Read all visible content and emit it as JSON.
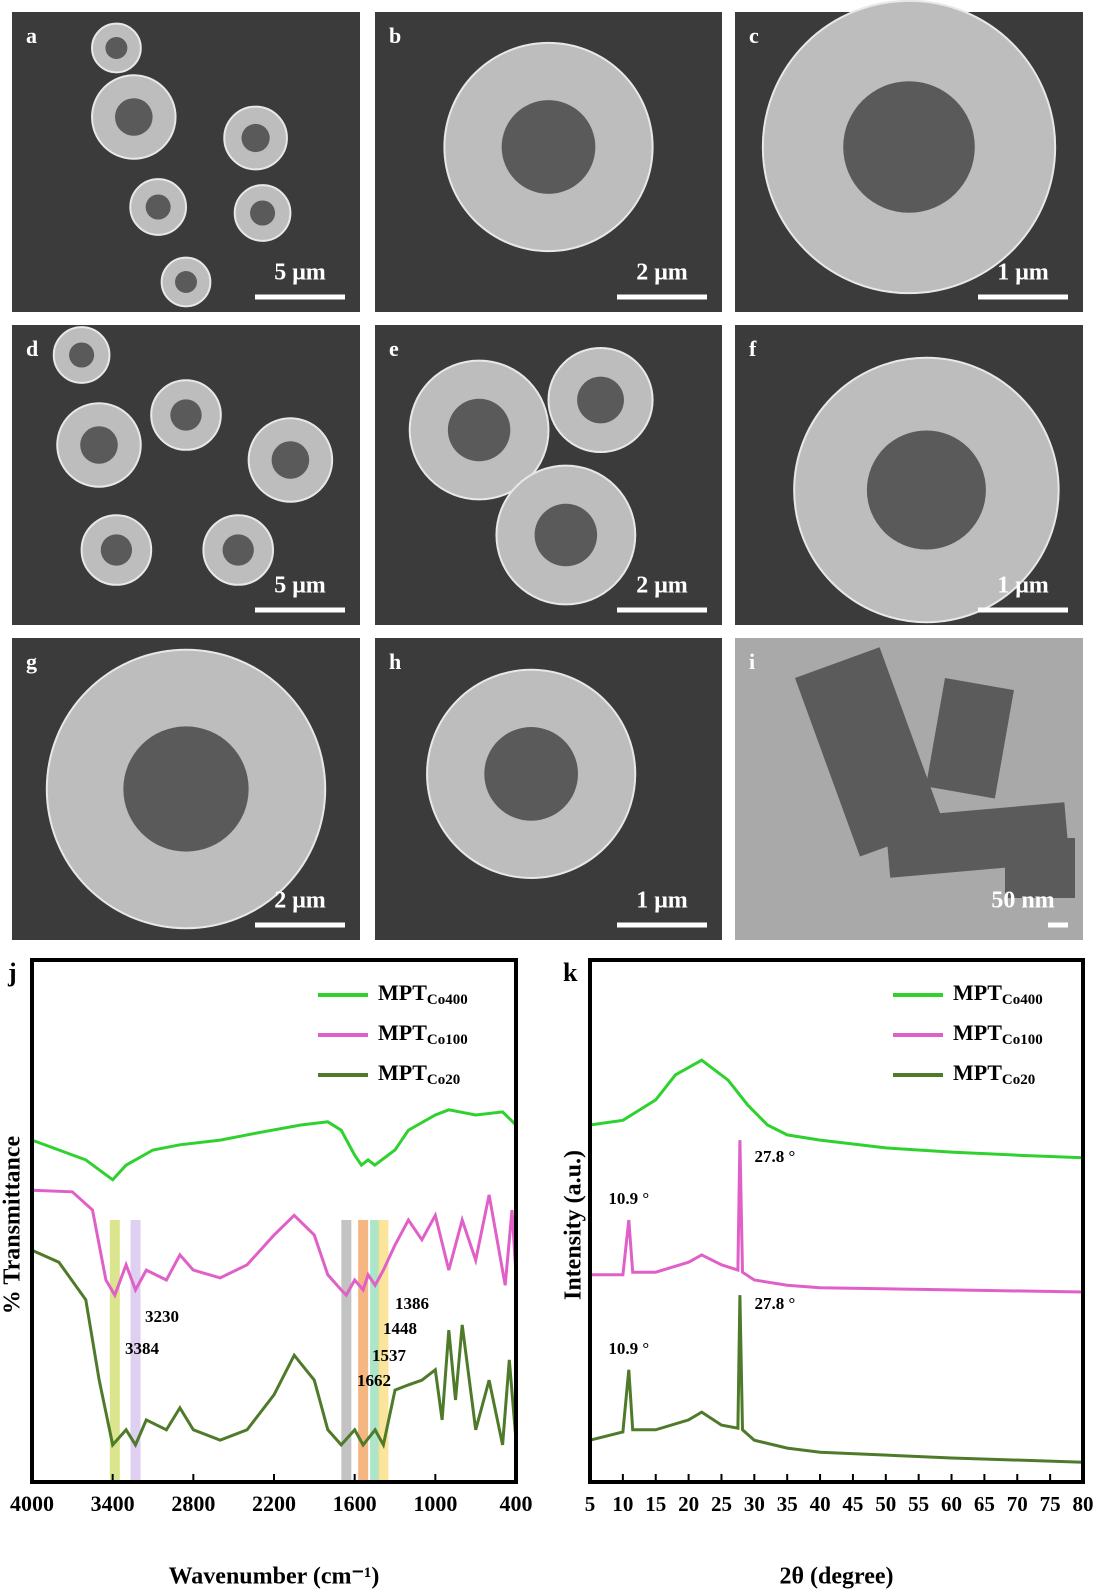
{
  "panels": [
    {
      "label": "a",
      "scale": "5 μm"
    },
    {
      "label": "b",
      "scale": "2 μm"
    },
    {
      "label": "c",
      "scale": "1 μm"
    },
    {
      "label": "d",
      "scale": "5 μm"
    },
    {
      "label": "e",
      "scale": "2 μm"
    },
    {
      "label": "f",
      "scale": "1 μm"
    },
    {
      "label": "g",
      "scale": "2 μm"
    },
    {
      "label": "h",
      "scale": "1 μm"
    },
    {
      "label": "i",
      "scale": "50 nm"
    }
  ],
  "chart_data": [
    {
      "type": "line",
      "panel": "j",
      "ylabel": "% Transmittance",
      "xlabel": "Wavenumber (cm⁻¹)",
      "xlim": [
        4000,
        400
      ],
      "ylim": [
        0,
        100
      ],
      "xticks": [
        4000,
        3400,
        2800,
        2200,
        1600,
        1000,
        400
      ],
      "bands": [
        {
          "value": 3384,
          "color": "#d4e07a"
        },
        {
          "value": 3230,
          "color": "#d9c7ef"
        },
        {
          "value": 1662,
          "color": "#b8b8b8"
        },
        {
          "value": 1537,
          "color": "#f5a96b"
        },
        {
          "value": 1448,
          "color": "#9de0c0"
        },
        {
          "value": 1386,
          "color": "#fbe08a"
        }
      ],
      "series": [
        {
          "name": "MPTCo20",
          "color": "#4f7a2a",
          "x": [
            4000,
            3800,
            3600,
            3500,
            3400,
            3300,
            3230,
            3150,
            3000,
            2900,
            2800,
            2600,
            2400,
            2200,
            2050,
            1900,
            1800,
            1700,
            1600,
            1537,
            1448,
            1386,
            1300,
            1200,
            1100,
            1000,
            950,
            900,
            850,
            800,
            700,
            600,
            500,
            450,
            400
          ],
          "values": [
            44.4,
            42.1,
            34.9,
            19.5,
            7.1,
            10.0,
            7.1,
            11.9,
            10.0,
            14.2,
            10.0,
            8.0,
            10.0,
            16.7,
            24.3,
            19.5,
            10.0,
            7.1,
            10.0,
            7.1,
            10.0,
            7.1,
            17.6,
            18.6,
            19.5,
            21.5,
            11.9,
            29.1,
            15.7,
            30.1,
            10.0,
            19.5,
            7.1,
            23.4,
            8.0
          ]
        },
        {
          "name": "MPTCo100",
          "color": "#e060c8",
          "x": [
            4000,
            3700,
            3550,
            3450,
            3384,
            3300,
            3230,
            3150,
            3000,
            2900,
            2800,
            2600,
            2400,
            2200,
            2050,
            1900,
            1800,
            1700,
            1662,
            1600,
            1537,
            1500,
            1448,
            1386,
            1300,
            1200,
            1100,
            1000,
            900,
            800,
            700,
            600,
            480,
            430,
            400
          ],
          "values": [
            55.9,
            55.6,
            52.1,
            38.7,
            35.8,
            41.6,
            36.8,
            40.6,
            38.7,
            43.5,
            40.6,
            39.1,
            41.6,
            47.3,
            51.1,
            47.3,
            39.7,
            36.8,
            35.8,
            38.7,
            36.8,
            39.7,
            37.7,
            40.6,
            45.4,
            50.2,
            46.4,
            51.1,
            40.6,
            50.2,
            42.5,
            55.0,
            37.7,
            52.1,
            39.7
          ]
        },
        {
          "name": "MPTCo400",
          "color": "#2fd12f",
          "x": [
            4000,
            3800,
            3600,
            3400,
            3300,
            3100,
            2900,
            2600,
            2300,
            2000,
            1800,
            1700,
            1600,
            1550,
            1500,
            1450,
            1300,
            1200,
            1000,
            900,
            700,
            500,
            400
          ],
          "values": [
            65.5,
            63.6,
            61.7,
            57.9,
            60.7,
            63.6,
            64.6,
            65.5,
            67.0,
            68.4,
            69.0,
            67.4,
            62.6,
            60.7,
            61.7,
            60.7,
            63.6,
            67.4,
            70.3,
            71.3,
            70.3,
            70.9,
            68.4
          ]
        }
      ]
    },
    {
      "type": "line",
      "panel": "k",
      "ylabel": "Intensity (a.u.)",
      "xlabel": "2θ (degree)",
      "xlim": [
        5,
        80
      ],
      "ylim": [
        0,
        100
      ],
      "xticks": [
        5,
        10,
        15,
        20,
        25,
        30,
        35,
        40,
        45,
        50,
        55,
        60,
        65,
        70,
        75,
        80
      ],
      "annotations": [
        {
          "value": 10.9,
          "label": "10.9 °"
        },
        {
          "value": 27.8,
          "label": "27.8 °"
        }
      ],
      "series": [
        {
          "name": "MPTCo20",
          "color": "#4f7a2a",
          "x": [
            5,
            10,
            10.9,
            11.5,
            15,
            20,
            22,
            25,
            27.5,
            27.8,
            28.2,
            30,
            35,
            40,
            60,
            80
          ],
          "values": [
            8.0,
            9.6,
            21.5,
            10.0,
            10.0,
            11.9,
            13.4,
            10.9,
            10.3,
            35.8,
            10.0,
            8.0,
            6.5,
            5.7,
            4.6,
            3.8
          ]
        },
        {
          "name": "MPTCo100",
          "color": "#e060c8",
          "x": [
            5,
            10,
            10.9,
            11.5,
            15,
            20,
            22,
            25,
            27.5,
            27.8,
            28.2,
            30,
            35,
            40,
            60,
            80
          ],
          "values": [
            39.7,
            39.7,
            50.2,
            40.2,
            40.2,
            42.1,
            43.5,
            41.6,
            40.6,
            65.5,
            40.2,
            38.7,
            37.7,
            37.2,
            36.8,
            36.4
          ]
        },
        {
          "name": "MPTCo400",
          "color": "#2fd12f",
          "x": [
            5,
            10,
            15,
            18,
            22,
            26,
            29,
            32,
            35,
            40,
            50,
            60,
            70,
            80
          ],
          "values": [
            68.4,
            69.3,
            73.2,
            78.0,
            80.8,
            77.0,
            72.2,
            68.4,
            66.5,
            65.5,
            64.0,
            63.2,
            62.6,
            62.1
          ]
        }
      ]
    }
  ]
}
